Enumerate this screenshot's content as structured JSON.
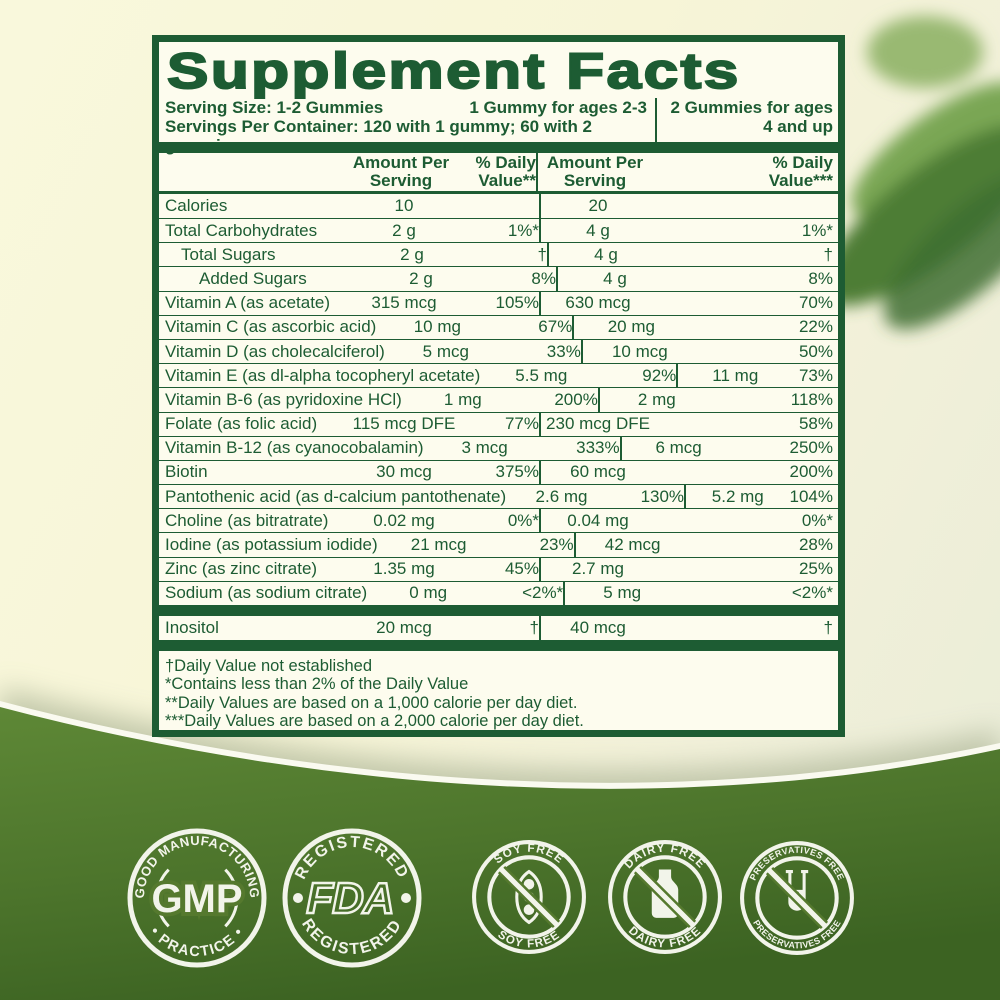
{
  "label": {
    "title": "Supplement Facts",
    "serving": {
      "size_line": "Serving Size: 1-2 Gummies",
      "col1_note": "1 Gummy for ages 2-3",
      "col2_note_line1": "2 Gummies for ages",
      "col2_note_line2": "4 and up",
      "servings_line": "Servings Per Container: 120 with 1 gummy; 60 with 2 gummies"
    },
    "columns": {
      "amount_l1": "Amount Per",
      "amount_l2": "Serving",
      "dv_l1": "% Daily",
      "dv1_l2": "Value**",
      "dv2_l2": "Value***"
    },
    "rows": [
      {
        "name": "Calories",
        "indent": 0,
        "amt1": "10",
        "dv1": "",
        "amt2": "20",
        "dv2": ""
      },
      {
        "name": "Total Carbohydrates",
        "indent": 0,
        "amt1": "2 g",
        "dv1": "1%*",
        "amt2": "4 g",
        "dv2": "1%*"
      },
      {
        "name": "Total Sugars",
        "indent": 1,
        "amt1": "2 g",
        "dv1": "†",
        "amt2": "4 g",
        "dv2": "†"
      },
      {
        "name": "Added Sugars",
        "indent": 2,
        "amt1": "2 g",
        "dv1": "8%",
        "amt2": "4 g",
        "dv2": "8%"
      },
      {
        "name": "Vitamin A (as acetate)",
        "indent": 0,
        "amt1": "315 mcg",
        "dv1": "105%",
        "amt2": "630 mcg",
        "dv2": "70%"
      },
      {
        "name": "Vitamin C (as ascorbic acid)",
        "indent": 0,
        "amt1": "10 mg",
        "dv1": "67%",
        "amt2": "20 mg",
        "dv2": "22%"
      },
      {
        "name": "Vitamin D (as cholecalciferol)",
        "indent": 0,
        "amt1": "5 mcg",
        "dv1": "33%",
        "amt2": "10 mcg",
        "dv2": "50%"
      },
      {
        "name": "Vitamin E (as dl-alpha tocopheryl acetate)",
        "indent": 0,
        "amt1": "5.5 mg",
        "dv1": "92%",
        "amt2": "11 mg",
        "dv2": "73%"
      },
      {
        "name": "Vitamin B-6 (as pyridoxine HCl)",
        "indent": 0,
        "amt1": "1 mg",
        "dv1": "200%",
        "amt2": "2 mg",
        "dv2": "118%"
      },
      {
        "name": "Folate (as folic acid)",
        "indent": 0,
        "amt1": "115 mcg DFE",
        "dv1": "77%",
        "amt2": "230 mcg DFE",
        "dv2": "58%"
      },
      {
        "name": "Vitamin B-12 (as cyanocobalamin)",
        "indent": 0,
        "amt1": "3 mcg",
        "dv1": "333%",
        "amt2": "6 mcg",
        "dv2": "250%"
      },
      {
        "name": "Biotin",
        "indent": 0,
        "amt1": "30 mcg",
        "dv1": "375%",
        "amt2": "60 mcg",
        "dv2": "200%"
      },
      {
        "name": "Pantothenic acid (as d-calcium pantothenate)",
        "indent": 0,
        "amt1": "2.6 mg",
        "dv1": "130%",
        "amt2": "5.2 mg",
        "dv2": "104%"
      },
      {
        "name": "Choline (as bitratrate)",
        "indent": 0,
        "amt1": "0.02 mg",
        "dv1": "0%*",
        "amt2": "0.04 mg",
        "dv2": "0%*"
      },
      {
        "name": "Iodine (as potassium iodide)",
        "indent": 0,
        "amt1": "21 mcg",
        "dv1": "23%",
        "amt2": "42 mcg",
        "dv2": "28%"
      },
      {
        "name": "Zinc (as zinc citrate)",
        "indent": 0,
        "amt1": "1.35 mg",
        "dv1": "45%",
        "amt2": "2.7 mg",
        "dv2": "25%"
      },
      {
        "name": "Sodium (as sodium citrate)",
        "indent": 0,
        "amt1": "0 mg",
        "dv1": "<2%*",
        "amt2": "5 mg",
        "dv2": "<2%*"
      }
    ],
    "extra_row": {
      "name": "Inositol",
      "amt1": "20 mcg",
      "dv1": "†",
      "amt2": "40 mcg",
      "dv2": "†"
    },
    "footnotes": [
      "†Daily Value not established",
      "*Contains less than 2% of the Daily Value",
      "**Daily Values are based on a 1,000 calorie per day diet.",
      "***Daily Values are based on a 2,000 calorie per day diet."
    ]
  },
  "badges": {
    "gmp": {
      "top": "GOOD MANUFACTURING",
      "center": "GMP",
      "bottom": "• PRACTICE •"
    },
    "fda": {
      "top": "REGISTERED",
      "center": "FDA",
      "bottom": "REGISTERED"
    },
    "soy": {
      "top": "SOY FREE",
      "bottom": "SOY FREE"
    },
    "dairy": {
      "top": "DAIRY FREE",
      "bottom": "DAIRY FREE"
    },
    "pres": {
      "top": "PRESERVATIVES FREE",
      "bottom": "PRESERVATIVES FREE"
    }
  },
  "colors": {
    "label_green": "#1d5c33",
    "label_background": "#fdfcee",
    "page_cream": "#f8f7db",
    "wave_green": "#55792e",
    "badge_white": "#f2f4ea"
  }
}
